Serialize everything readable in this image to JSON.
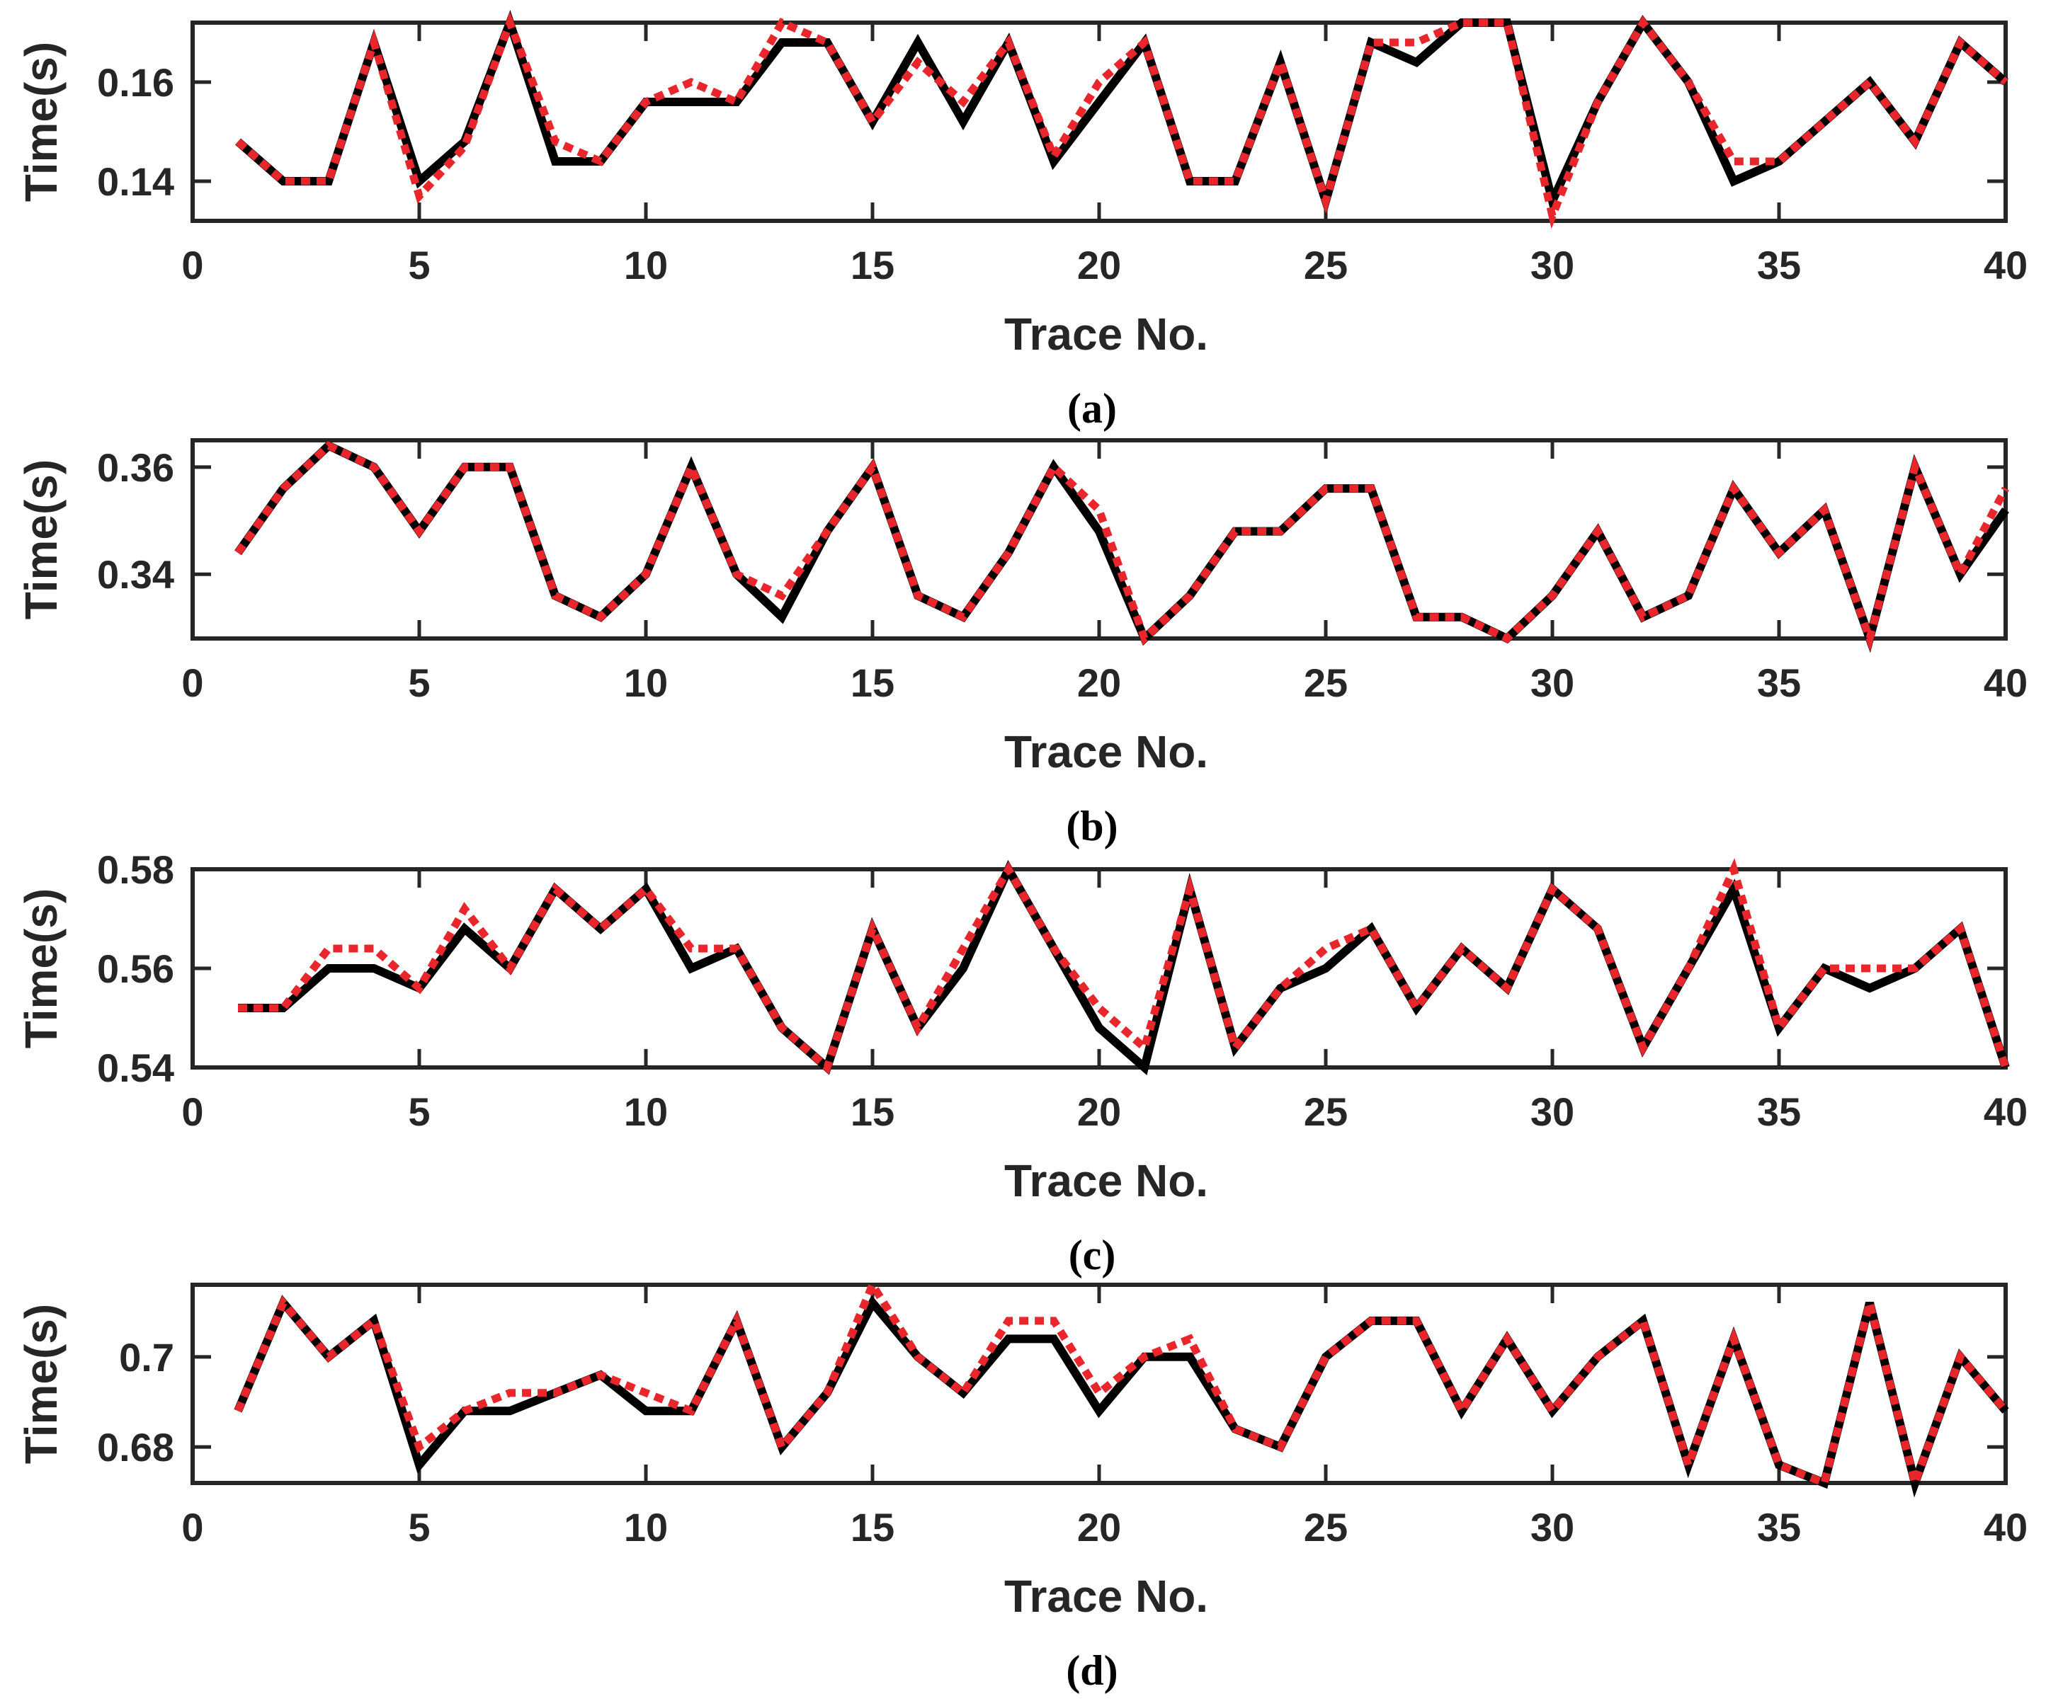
{
  "colors": {
    "axis": "#262626",
    "series_solid": "#000000",
    "series_dotted": "#e8262c"
  },
  "chart_data": [
    {
      "type": "line",
      "panel_label": "(a)",
      "xlabel": "Trace No.",
      "ylabel": "Time(s)",
      "xlim": [
        0,
        40
      ],
      "ylim": [
        0.132,
        0.172
      ],
      "xticks": [
        0,
        5,
        10,
        15,
        20,
        25,
        30,
        35,
        40
      ],
      "xtick_labels": [
        "0",
        "5",
        "10",
        "15",
        "20",
        "25",
        "30",
        "35",
        "40"
      ],
      "yticks": [
        0.14,
        0.16
      ],
      "ytick_labels": [
        "0.14",
        "0.16"
      ],
      "grid": false,
      "x": [
        1,
        2,
        3,
        4,
        5,
        6,
        7,
        8,
        9,
        10,
        11,
        12,
        13,
        14,
        15,
        16,
        17,
        18,
        19,
        20,
        21,
        22,
        23,
        24,
        25,
        26,
        27,
        28,
        29,
        30,
        31,
        32,
        33,
        34,
        35,
        36,
        37,
        38,
        39,
        40
      ],
      "series": [
        {
          "style": "solid",
          "values": [
            0.148,
            0.14,
            0.14,
            0.168,
            0.14,
            0.148,
            0.172,
            0.144,
            0.144,
            0.156,
            0.156,
            0.156,
            0.168,
            0.168,
            0.152,
            0.168,
            0.152,
            0.168,
            0.144,
            0.156,
            0.168,
            0.14,
            0.14,
            0.164,
            0.136,
            0.168,
            0.164,
            0.172,
            0.172,
            0.136,
            0.156,
            0.172,
            0.16,
            0.14,
            0.144,
            0.152,
            0.16,
            0.148,
            0.168,
            0.16
          ]
        },
        {
          "style": "dotted",
          "values": [
            0.148,
            0.14,
            0.14,
            0.168,
            0.137,
            0.147,
            0.172,
            0.148,
            0.144,
            0.156,
            0.16,
            0.156,
            0.172,
            0.168,
            0.152,
            0.164,
            0.156,
            0.168,
            0.145,
            0.16,
            0.168,
            0.14,
            0.14,
            0.164,
            0.136,
            0.168,
            0.168,
            0.172,
            0.172,
            0.133,
            0.156,
            0.172,
            0.16,
            0.144,
            0.144,
            0.152,
            0.16,
            0.148,
            0.168,
            0.16
          ]
        }
      ]
    },
    {
      "type": "line",
      "panel_label": "(b)",
      "xlabel": "Trace No.",
      "ylabel": "Time(s)",
      "xlim": [
        0,
        40
      ],
      "ylim": [
        0.328,
        0.365
      ],
      "xticks": [
        0,
        5,
        10,
        15,
        20,
        25,
        30,
        35,
        40
      ],
      "xtick_labels": [
        "0",
        "5",
        "10",
        "15",
        "20",
        "25",
        "30",
        "35",
        "40"
      ],
      "yticks": [
        0.34,
        0.36
      ],
      "ytick_labels": [
        "0.34",
        "0.36"
      ],
      "grid": false,
      "x": [
        1,
        2,
        3,
        4,
        5,
        6,
        7,
        8,
        9,
        10,
        11,
        12,
        13,
        14,
        15,
        16,
        17,
        18,
        19,
        20,
        21,
        22,
        23,
        24,
        25,
        26,
        27,
        28,
        29,
        30,
        31,
        32,
        33,
        34,
        35,
        36,
        37,
        38,
        39,
        40
      ],
      "series": [
        {
          "style": "solid",
          "values": [
            0.344,
            0.356,
            0.364,
            0.36,
            0.348,
            0.36,
            0.36,
            0.336,
            0.332,
            0.34,
            0.36,
            0.34,
            0.332,
            0.348,
            0.36,
            0.336,
            0.332,
            0.344,
            0.36,
            0.348,
            0.328,
            0.336,
            0.348,
            0.348,
            0.356,
            0.356,
            0.332,
            0.332,
            0.328,
            0.336,
            0.348,
            0.332,
            0.336,
            0.356,
            0.344,
            0.352,
            0.328,
            0.36,
            0.34,
            0.352
          ]
        },
        {
          "style": "dotted",
          "values": [
            0.344,
            0.356,
            0.364,
            0.36,
            0.348,
            0.36,
            0.36,
            0.336,
            0.332,
            0.34,
            0.36,
            0.34,
            0.336,
            0.348,
            0.36,
            0.336,
            0.332,
            0.344,
            0.36,
            0.352,
            0.328,
            0.336,
            0.348,
            0.348,
            0.356,
            0.356,
            0.332,
            0.332,
            0.328,
            0.336,
            0.348,
            0.332,
            0.336,
            0.356,
            0.344,
            0.352,
            0.328,
            0.36,
            0.34,
            0.356
          ]
        }
      ]
    },
    {
      "type": "line",
      "panel_label": "(c)",
      "xlabel": "Trace No.",
      "ylabel": "Time(s)",
      "xlim": [
        0,
        40
      ],
      "ylim": [
        0.54,
        0.58
      ],
      "xticks": [
        0,
        5,
        10,
        15,
        20,
        25,
        30,
        35,
        40
      ],
      "xtick_labels": [
        "0",
        "5",
        "10",
        "15",
        "20",
        "25",
        "30",
        "35",
        "40"
      ],
      "yticks": [
        0.54,
        0.56,
        0.58
      ],
      "ytick_labels": [
        "0.54",
        "0.56",
        "0.58"
      ],
      "grid": false,
      "x": [
        1,
        2,
        3,
        4,
        5,
        6,
        7,
        8,
        9,
        10,
        11,
        12,
        13,
        14,
        15,
        16,
        17,
        18,
        19,
        20,
        21,
        22,
        23,
        24,
        25,
        26,
        27,
        28,
        29,
        30,
        31,
        32,
        33,
        34,
        35,
        36,
        37,
        38,
        39,
        40
      ],
      "series": [
        {
          "style": "solid",
          "values": [
            0.552,
            0.552,
            0.56,
            0.56,
            0.556,
            0.568,
            0.56,
            0.576,
            0.568,
            0.576,
            0.56,
            0.564,
            0.548,
            0.54,
            0.568,
            0.548,
            0.56,
            0.58,
            0.564,
            0.548,
            0.54,
            0.576,
            0.544,
            0.556,
            0.56,
            0.568,
            0.552,
            0.564,
            0.556,
            0.576,
            0.568,
            0.544,
            0.56,
            0.576,
            0.548,
            0.56,
            0.556,
            0.56,
            0.568,
            0.54
          ]
        },
        {
          "style": "dotted",
          "values": [
            0.552,
            0.552,
            0.564,
            0.564,
            0.556,
            0.572,
            0.56,
            0.576,
            0.568,
            0.576,
            0.564,
            0.564,
            0.548,
            0.54,
            0.568,
            0.548,
            0.564,
            0.58,
            0.564,
            0.552,
            0.544,
            0.576,
            0.544,
            0.556,
            0.564,
            0.568,
            0.552,
            0.564,
            0.556,
            0.576,
            0.568,
            0.544,
            0.56,
            0.58,
            0.548,
            0.56,
            0.56,
            0.56,
            0.568,
            0.54
          ]
        }
      ]
    },
    {
      "type": "line",
      "panel_label": "(d)",
      "xlabel": "Trace No.",
      "ylabel": "Time(s)",
      "xlim": [
        0,
        40
      ],
      "ylim": [
        0.672,
        0.716
      ],
      "xticks": [
        0,
        5,
        10,
        15,
        20,
        25,
        30,
        35,
        40
      ],
      "xtick_labels": [
        "0",
        "5",
        "10",
        "15",
        "20",
        "25",
        "30",
        "35",
        "40"
      ],
      "yticks": [
        0.68,
        0.7
      ],
      "ytick_labels": [
        "0.68",
        "0.7"
      ],
      "grid": false,
      "x": [
        1,
        2,
        3,
        4,
        5,
        6,
        7,
        8,
        9,
        10,
        11,
        12,
        13,
        14,
        15,
        16,
        17,
        18,
        19,
        20,
        21,
        22,
        23,
        24,
        25,
        26,
        27,
        28,
        29,
        30,
        31,
        32,
        33,
        34,
        35,
        36,
        37,
        38,
        39,
        40
      ],
      "series": [
        {
          "style": "solid",
          "values": [
            0.688,
            0.712,
            0.7,
            0.708,
            0.676,
            0.688,
            0.688,
            0.692,
            0.696,
            0.688,
            0.688,
            0.708,
            0.68,
            0.692,
            0.712,
            0.7,
            0.692,
            0.704,
            0.704,
            0.688,
            0.7,
            0.7,
            0.684,
            0.68,
            0.7,
            0.708,
            0.708,
            0.688,
            0.704,
            0.688,
            0.7,
            0.708,
            0.676,
            0.704,
            0.676,
            0.672,
            0.712,
            0.672,
            0.7,
            0.688
          ]
        },
        {
          "style": "dotted",
          "values": [
            0.688,
            0.712,
            0.7,
            0.708,
            0.68,
            0.688,
            0.692,
            0.692,
            0.696,
            0.692,
            0.688,
            0.708,
            0.68,
            0.692,
            0.716,
            0.7,
            0.692,
            0.708,
            0.708,
            0.692,
            0.7,
            0.704,
            0.684,
            0.68,
            0.7,
            0.708,
            0.708,
            0.688,
            0.704,
            0.688,
            0.7,
            0.708,
            0.676,
            0.704,
            0.676,
            0.672,
            0.712,
            0.672,
            0.7,
            0.688
          ]
        }
      ]
    }
  ]
}
